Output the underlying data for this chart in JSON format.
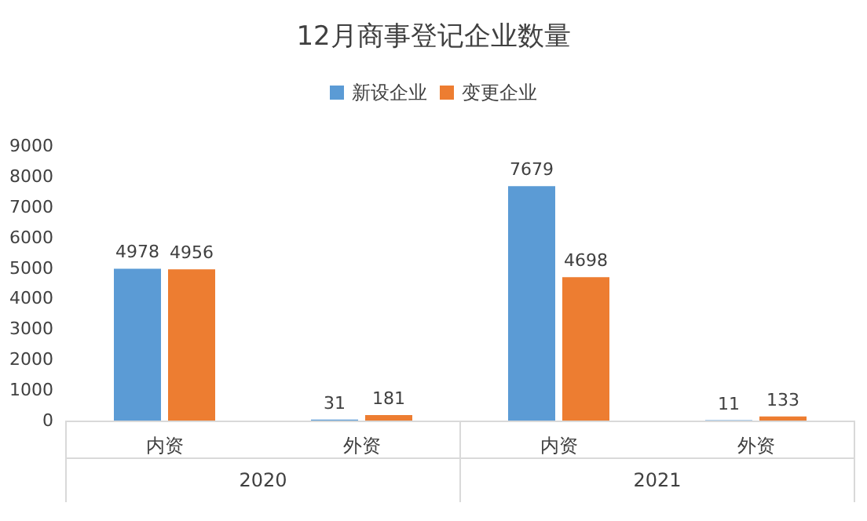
{
  "chart_data": {
    "type": "bar",
    "title": "12月商事登记企业数量",
    "categories": [
      "内资",
      "外资",
      "内资",
      "外资"
    ],
    "series": [
      {
        "name": "新设企业",
        "color": "#5b9bd5",
        "values": [
          4978,
          31,
          7679,
          11
        ]
      },
      {
        "name": "变更企业",
        "color": "#ed7d31",
        "values": [
          4956,
          181,
          4698,
          133
        ]
      }
    ],
    "annotations": [
      "2020",
      "2021"
    ],
    "ylim": [
      0,
      9000
    ],
    "yticks": [
      0,
      1000,
      2000,
      3000,
      4000,
      5000,
      6000,
      7000,
      8000,
      9000
    ],
    "data_labels": true,
    "grid": false,
    "legend": "top"
  }
}
